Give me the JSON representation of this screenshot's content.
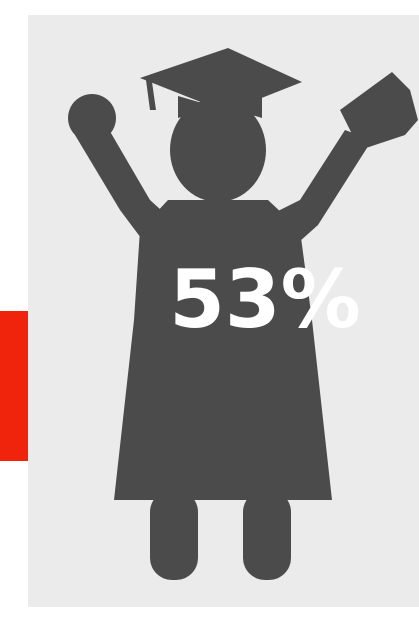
{
  "stat": "53%"
}
